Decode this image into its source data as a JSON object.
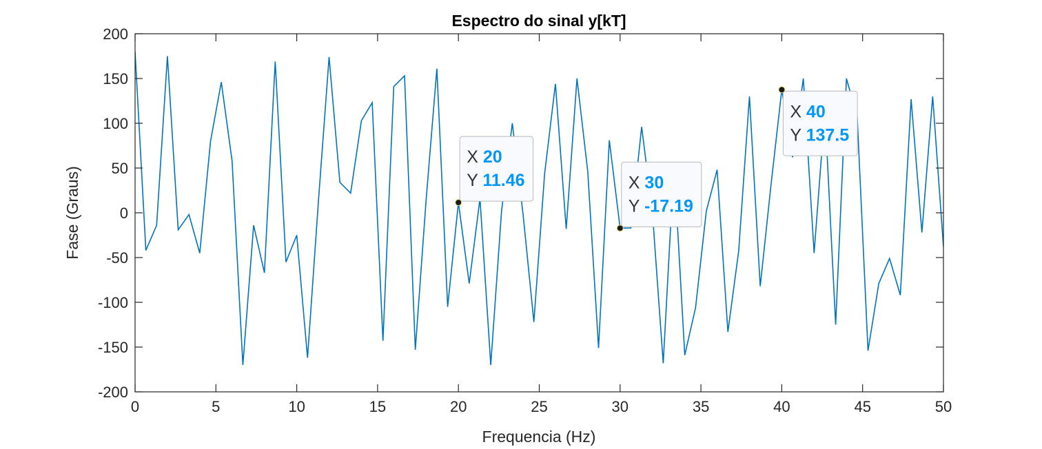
{
  "colors": {
    "line": "#0072bd",
    "datatip_value": "#0096ff",
    "axis": "#262626",
    "background": "#ffffff"
  },
  "chart_data": {
    "type": "line",
    "title": "Espectro do sinal y[kT]",
    "xlabel": "Frequencia (Hz)",
    "ylabel": "Fase (Graus)",
    "xlim": [
      0,
      50
    ],
    "ylim": [
      -200,
      200
    ],
    "xticks": [
      0,
      5,
      10,
      15,
      20,
      25,
      30,
      35,
      40,
      45,
      50
    ],
    "yticks": [
      200,
      150,
      100,
      50,
      0,
      -50,
      -100,
      -150,
      -200
    ],
    "grid": false,
    "series": [
      {
        "x": [
          0,
          0.667,
          1.333,
          2,
          2.667,
          3.333,
          4,
          4.667,
          5.333,
          6,
          6.667,
          7.333,
          8,
          8.667,
          9.333,
          10,
          10.667,
          11.333,
          12,
          12.667,
          13.333,
          14,
          14.667,
          15.333,
          16,
          16.667,
          17.333,
          18,
          18.667,
          19.333,
          20,
          20.667,
          21.333,
          22,
          22.667,
          23.333,
          24,
          24.667,
          25.333,
          26,
          26.667,
          27.333,
          28,
          28.667,
          29.333,
          30,
          30.667,
          31.333,
          32,
          32.667,
          33.333,
          34,
          34.667,
          35.333,
          36,
          36.667,
          37.333,
          38,
          38.667,
          39.333,
          40,
          40.667,
          41.333,
          42,
          42.667,
          43.333,
          44,
          44.667,
          45.333,
          46,
          46.667,
          47.333,
          48,
          48.667,
          49.333,
          50
        ],
        "y": [
          180,
          -42,
          -14,
          175,
          -19,
          -2,
          -45,
          80,
          146,
          58,
          -170,
          -14,
          -67,
          169,
          -55,
          -25,
          -162,
          11,
          174,
          34,
          22,
          103,
          123,
          -143,
          141,
          153,
          -153,
          14,
          161,
          -105,
          11.46,
          -79,
          16,
          -170,
          2,
          100,
          -2,
          -122,
          44,
          144,
          -18,
          150,
          46,
          -151,
          81,
          -17.19,
          -17,
          96,
          0,
          -168,
          54,
          -159,
          -106,
          2,
          48,
          -133,
          -43,
          130,
          -82,
          31,
          137.5,
          62,
          150,
          -45,
          114,
          -125,
          150,
          107,
          -154,
          -79,
          -51,
          -92,
          127,
          -22,
          130,
          -38
        ]
      }
    ],
    "datatips": [
      {
        "x_key": "X",
        "x_value": "20",
        "y_key": "Y",
        "y_value": "11.46",
        "x": 20,
        "y": 11.46
      },
      {
        "x_key": "X",
        "x_value": "30",
        "y_key": "Y",
        "y_value": "-17.19",
        "x": 30,
        "y": -17.19
      },
      {
        "x_key": "X",
        "x_value": "40",
        "y_key": "Y",
        "y_value": "137.5",
        "x": 40,
        "y": 137.5
      }
    ]
  }
}
